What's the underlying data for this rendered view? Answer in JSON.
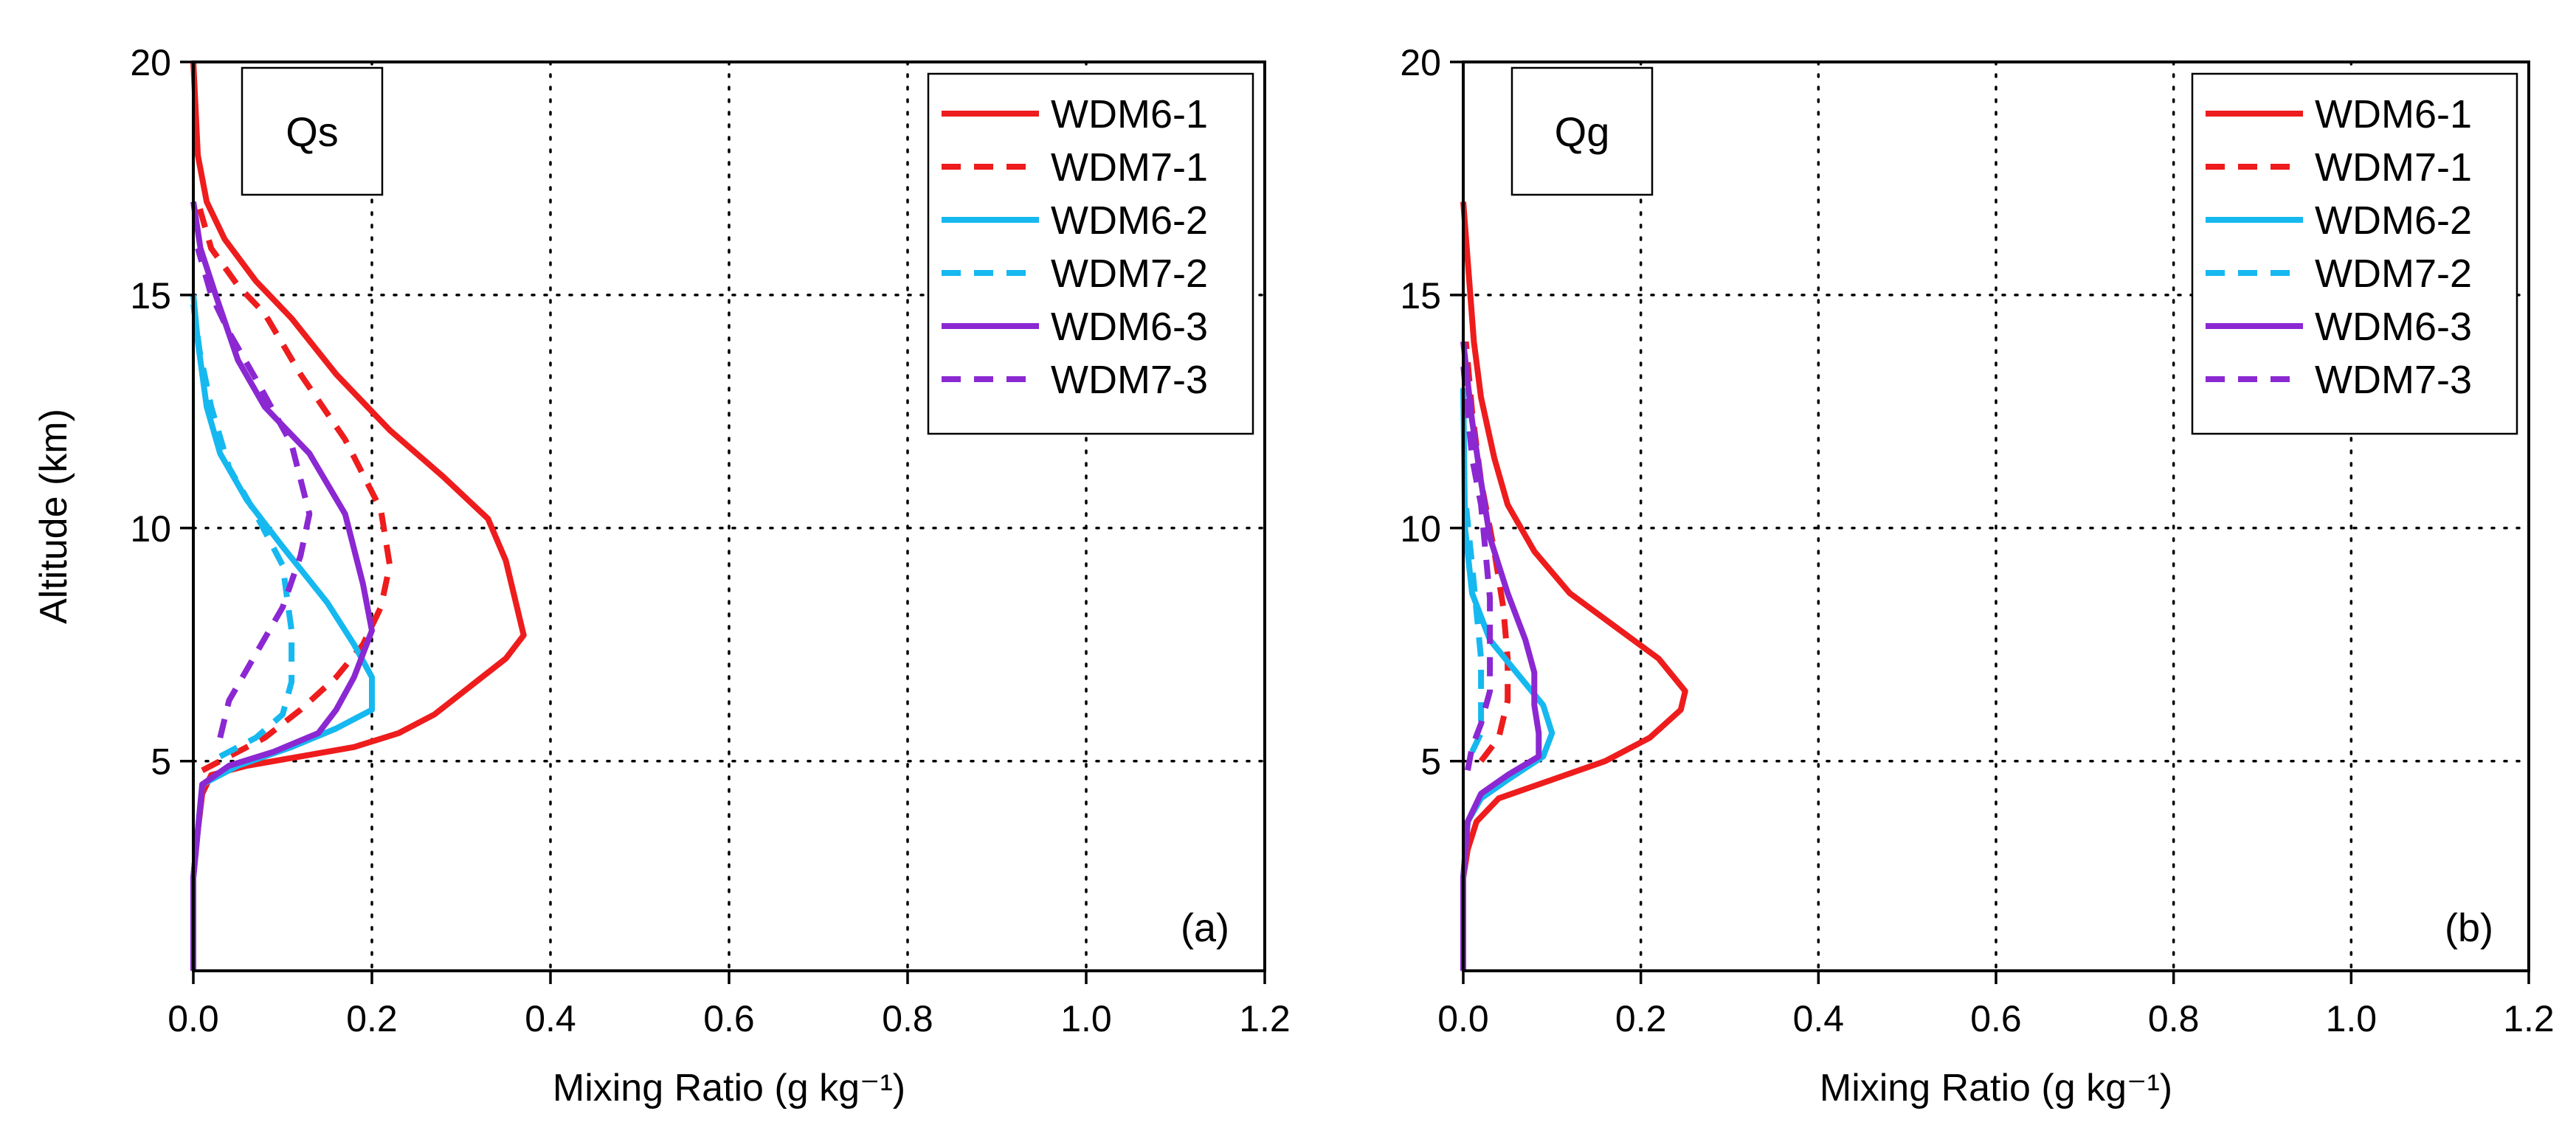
{
  "figure": {
    "colors": {
      "run1": "#ee1c1c",
      "run2": "#16b8f0",
      "run3": "#8b28d2",
      "axis": "#000000",
      "grid": "#000000"
    }
  },
  "chart_data": [
    {
      "type": "line",
      "panel": "a",
      "panel_label": "(a)",
      "variable_label": "Qs",
      "xlabel": "Mixing Ratio (g kg⁻¹)",
      "ylabel": "Altitude (km)",
      "xlim": [
        0,
        1.2
      ],
      "ylim": [
        0.5,
        20
      ],
      "xticks": [
        0,
        0.2,
        0.4,
        0.6,
        0.8,
        1.0,
        1.2
      ],
      "xtick_labels": [
        "0.0",
        "0.2",
        "0.4",
        "0.6",
        "0.8",
        "1.0",
        "1.2"
      ],
      "yticks": [
        5,
        10,
        15,
        20
      ],
      "ytick_labels": [
        "5",
        "10",
        "15",
        "20"
      ],
      "grid": true,
      "legend_position": "top-right",
      "series": [
        {
          "name": "WDM6-1",
          "color_key": "run1",
          "dash": false,
          "points": [
            [
              0.0,
              0.5
            ],
            [
              0.0,
              2.5
            ],
            [
              0.005,
              3.5
            ],
            [
              0.01,
              4.3
            ],
            [
              0.02,
              4.7
            ],
            [
              0.06,
              4.9
            ],
            [
              0.12,
              5.1
            ],
            [
              0.18,
              5.3
            ],
            [
              0.23,
              5.6
            ],
            [
              0.27,
              6.0
            ],
            [
              0.31,
              6.6
            ],
            [
              0.35,
              7.2
            ],
            [
              0.37,
              7.7
            ],
            [
              0.36,
              8.5
            ],
            [
              0.35,
              9.3
            ],
            [
              0.33,
              10.2
            ],
            [
              0.28,
              11.1
            ],
            [
              0.22,
              12.1
            ],
            [
              0.16,
              13.3
            ],
            [
              0.11,
              14.5
            ],
            [
              0.07,
              15.3
            ],
            [
              0.035,
              16.2
            ],
            [
              0.015,
              17.0
            ],
            [
              0.005,
              18.0
            ],
            [
              0.0,
              20.0
            ]
          ]
        },
        {
          "name": "WDM7-1",
          "color_key": "run1",
          "dash": true,
          "points": [
            [
              0.01,
              4.8
            ],
            [
              0.04,
              5.1
            ],
            [
              0.08,
              5.5
            ],
            [
              0.12,
              6.1
            ],
            [
              0.16,
              6.8
            ],
            [
              0.19,
              7.5
            ],
            [
              0.21,
              8.3
            ],
            [
              0.22,
              9.2
            ],
            [
              0.21,
              10.4
            ],
            [
              0.17,
              11.9
            ],
            [
              0.12,
              13.3
            ],
            [
              0.08,
              14.6
            ],
            [
              0.05,
              15.2
            ],
            [
              0.02,
              16.0
            ],
            [
              0.005,
              17.0
            ]
          ]
        },
        {
          "name": "WDM6-2",
          "color_key": "run2",
          "dash": false,
          "points": [
            [
              0.0,
              0.5
            ],
            [
              0.0,
              2.5
            ],
            [
              0.01,
              4.5
            ],
            [
              0.05,
              4.9
            ],
            [
              0.11,
              5.3
            ],
            [
              0.16,
              5.7
            ],
            [
              0.2,
              6.1
            ],
            [
              0.2,
              6.8
            ],
            [
              0.18,
              7.5
            ],
            [
              0.15,
              8.4
            ],
            [
              0.1,
              9.6
            ],
            [
              0.06,
              10.6
            ],
            [
              0.03,
              11.6
            ],
            [
              0.015,
              12.6
            ],
            [
              0.005,
              14.0
            ],
            [
              0.0,
              15.0
            ]
          ]
        },
        {
          "name": "WDM7-2",
          "color_key": "run2",
          "dash": true,
          "points": [
            [
              0.03,
              5.1
            ],
            [
              0.07,
              5.5
            ],
            [
              0.1,
              6.0
            ],
            [
              0.11,
              6.7
            ],
            [
              0.11,
              7.8
            ],
            [
              0.1,
              9.2
            ],
            [
              0.07,
              10.3
            ],
            [
              0.04,
              11.3
            ],
            [
              0.02,
              12.6
            ],
            [
              0.007,
              13.8
            ],
            [
              0.0,
              14.8
            ]
          ]
        },
        {
          "name": "WDM6-3",
          "color_key": "run3",
          "dash": false,
          "points": [
            [
              0.0,
              0.5
            ],
            [
              0.0,
              2.5
            ],
            [
              0.01,
              4.5
            ],
            [
              0.04,
              4.9
            ],
            [
              0.09,
              5.2
            ],
            [
              0.14,
              5.6
            ],
            [
              0.16,
              6.1
            ],
            [
              0.18,
              6.8
            ],
            [
              0.2,
              7.8
            ],
            [
              0.19,
              8.8
            ],
            [
              0.17,
              10.3
            ],
            [
              0.13,
              11.6
            ],
            [
              0.08,
              12.6
            ],
            [
              0.05,
              13.6
            ],
            [
              0.025,
              15.0
            ],
            [
              0.008,
              16.0
            ],
            [
              0.0,
              17.0
            ]
          ]
        },
        {
          "name": "WDM7-3",
          "color_key": "run3",
          "dash": true,
          "points": [
            [
              0.03,
              5.5
            ],
            [
              0.04,
              6.3
            ],
            [
              0.07,
              7.3
            ],
            [
              0.1,
              8.3
            ],
            [
              0.12,
              9.4
            ],
            [
              0.13,
              10.3
            ],
            [
              0.11,
              11.8
            ],
            [
              0.07,
              13.2
            ],
            [
              0.04,
              14.2
            ],
            [
              0.02,
              15.0
            ],
            [
              0.005,
              16.0
            ]
          ]
        }
      ]
    },
    {
      "type": "line",
      "panel": "b",
      "panel_label": "(b)",
      "variable_label": "Qg",
      "xlabel": "Mixing Ratio (g kg⁻¹)",
      "ylabel": "",
      "xlim": [
        0,
        1.2
      ],
      "ylim": [
        0.5,
        20
      ],
      "xticks": [
        0,
        0.2,
        0.4,
        0.6,
        0.8,
        1.0,
        1.2
      ],
      "xtick_labels": [
        "0.0",
        "0.2",
        "0.4",
        "0.6",
        "0.8",
        "1.0",
        "1.2"
      ],
      "yticks": [
        5,
        10,
        15,
        20
      ],
      "ytick_labels": [
        "5",
        "10",
        "15",
        "20"
      ],
      "grid": true,
      "legend_position": "top-right",
      "series": [
        {
          "name": "WDM6-1",
          "color_key": "run1",
          "dash": false,
          "points": [
            [
              0.0,
              0.5
            ],
            [
              0.0,
              2.5
            ],
            [
              0.005,
              3.1
            ],
            [
              0.015,
              3.7
            ],
            [
              0.04,
              4.2
            ],
            [
              0.1,
              4.6
            ],
            [
              0.16,
              5.0
            ],
            [
              0.21,
              5.5
            ],
            [
              0.245,
              6.1
            ],
            [
              0.25,
              6.5
            ],
            [
              0.22,
              7.2
            ],
            [
              0.17,
              7.9
            ],
            [
              0.12,
              8.6
            ],
            [
              0.08,
              9.5
            ],
            [
              0.05,
              10.5
            ],
            [
              0.035,
              11.5
            ],
            [
              0.02,
              12.8
            ],
            [
              0.012,
              14.0
            ],
            [
              0.006,
              15.5
            ],
            [
              0.0,
              17.0
            ]
          ]
        },
        {
          "name": "WDM7-1",
          "color_key": "run1",
          "dash": true,
          "points": [
            [
              0.02,
              5.0
            ],
            [
              0.04,
              5.5
            ],
            [
              0.05,
              6.3
            ],
            [
              0.05,
              7.2
            ],
            [
              0.045,
              8.3
            ],
            [
              0.035,
              9.5
            ],
            [
              0.02,
              11.0
            ],
            [
              0.01,
              12.5
            ],
            [
              0.003,
              14.0
            ]
          ]
        },
        {
          "name": "WDM6-2",
          "color_key": "run2",
          "dash": false,
          "points": [
            [
              0.0,
              0.5
            ],
            [
              0.0,
              2.5
            ],
            [
              0.005,
              3.7
            ],
            [
              0.02,
              4.2
            ],
            [
              0.05,
              4.6
            ],
            [
              0.09,
              5.1
            ],
            [
              0.1,
              5.6
            ],
            [
              0.09,
              6.2
            ],
            [
              0.06,
              6.9
            ],
            [
              0.03,
              7.6
            ],
            [
              0.01,
              8.6
            ],
            [
              0.002,
              10.0
            ],
            [
              0.0,
              13.0
            ]
          ]
        },
        {
          "name": "WDM7-2",
          "color_key": "run2",
          "dash": true,
          "points": [
            [
              0.01,
              5.2
            ],
            [
              0.02,
              5.6
            ],
            [
              0.02,
              6.3
            ],
            [
              0.02,
              7.2
            ],
            [
              0.015,
              8.2
            ],
            [
              0.01,
              9.2
            ],
            [
              0.003,
              10.5
            ]
          ]
        },
        {
          "name": "WDM6-3",
          "color_key": "run3",
          "dash": false,
          "points": [
            [
              0.0,
              0.5
            ],
            [
              0.0,
              2.5
            ],
            [
              0.005,
              3.7
            ],
            [
              0.02,
              4.3
            ],
            [
              0.05,
              4.7
            ],
            [
              0.085,
              5.1
            ],
            [
              0.085,
              5.6
            ],
            [
              0.08,
              6.2
            ],
            [
              0.08,
              6.9
            ],
            [
              0.07,
              7.6
            ],
            [
              0.05,
              8.6
            ],
            [
              0.03,
              9.8
            ],
            [
              0.02,
              11.0
            ],
            [
              0.01,
              12.3
            ],
            [
              0.0,
              14.0
            ]
          ]
        },
        {
          "name": "WDM7-3",
          "color_key": "run3",
          "dash": true,
          "points": [
            [
              0.005,
              4.8
            ],
            [
              0.01,
              5.3
            ],
            [
              0.02,
              5.8
            ],
            [
              0.03,
              6.5
            ],
            [
              0.03,
              7.5
            ],
            [
              0.03,
              8.5
            ],
            [
              0.025,
              9.5
            ],
            [
              0.02,
              10.5
            ],
            [
              0.01,
              11.5
            ],
            [
              0.005,
              12.5
            ],
            [
              0.0,
              13.5
            ]
          ]
        }
      ]
    }
  ]
}
